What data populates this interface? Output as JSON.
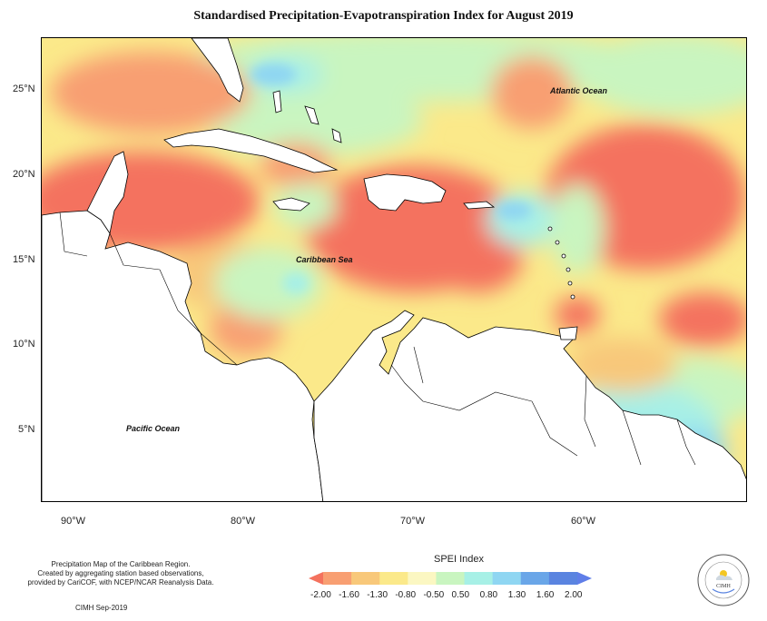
{
  "title": "Standardised Precipitation-Evapotranspiration Index for August 2019",
  "map": {
    "ocean_labels": {
      "atlantic": "Atlantic Ocean",
      "caribbean": "Caribbean Sea",
      "pacific": "Pacific Ocean"
    },
    "lat_ticks": [
      "25°N",
      "20°N",
      "15°N",
      "10°N",
      "5°N"
    ],
    "lon_ticks": [
      "90°W",
      "80°W",
      "70°W",
      "60°W"
    ]
  },
  "description": {
    "line1": "Precipitation Map of the Caribbean Region.",
    "line2": "Created by aggregating station based observations,",
    "line3": "provided by CariCOF, with NCEP/NCAR Reanalysis Data.",
    "credit": "CIMH Sep-2019"
  },
  "legend": {
    "title": "SPEI Index",
    "labels": [
      "-2.00",
      "-1.60",
      "-1.30",
      "-0.80",
      "-0.50",
      "0.50",
      "0.80",
      "1.30",
      "1.60",
      "2.00"
    ],
    "colors": [
      "#f4725e",
      "#f89f72",
      "#f8c87a",
      "#fbe98a",
      "#fbf7c2",
      "#c9f5c0",
      "#a7f0e6",
      "#8fd6f2",
      "#6aa6e8",
      "#5a84e0",
      "#5f7ee8"
    ]
  },
  "logo": {
    "text": "CIMH",
    "ring_text": "Caribbean Institute for Meteorology and Hydrology"
  }
}
